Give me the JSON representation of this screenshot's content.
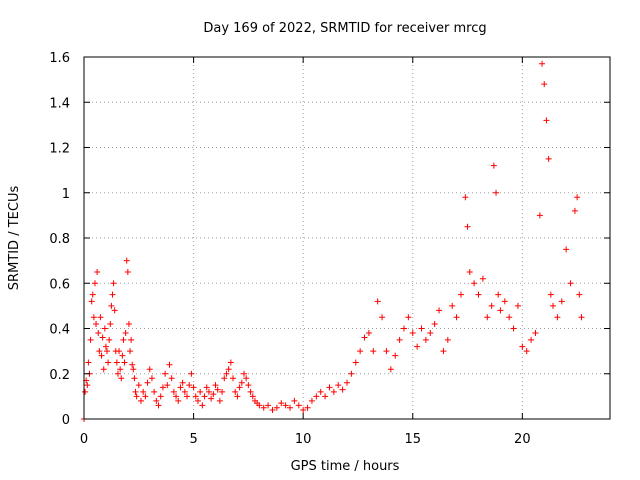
{
  "chart_data": {
    "type": "scatter",
    "title": "Day 169 of 2022, SRMTID for receiver mrcg",
    "xlabel": "GPS time / hours",
    "ylabel": "SRMTID / TECUs",
    "xlim": [
      0,
      24
    ],
    "ylim": [
      0,
      1.6
    ],
    "x_ticks": [
      0,
      5,
      10,
      15,
      20
    ],
    "x_tick_labels": [
      "0",
      "5",
      "10",
      "15",
      "20"
    ],
    "y_ticks": [
      0,
      0.2,
      0.4,
      0.6,
      0.8,
      1.0,
      1.2,
      1.4,
      1.6
    ],
    "y_tick_labels": [
      "0",
      "0.2",
      "0.4",
      "0.6",
      "0.8",
      "1",
      "1.2",
      "1.4",
      "1.6"
    ],
    "grid": true,
    "marker": "plus",
    "color": "#ff0000",
    "series": [
      {
        "name": "SRMTID",
        "points": [
          [
            0.0,
            0.0
          ],
          [
            0.05,
            0.12
          ],
          [
            0.1,
            0.17
          ],
          [
            0.15,
            0.15
          ],
          [
            0.2,
            0.25
          ],
          [
            0.25,
            0.2
          ],
          [
            0.3,
            0.35
          ],
          [
            0.35,
            0.52
          ],
          [
            0.4,
            0.55
          ],
          [
            0.45,
            0.45
          ],
          [
            0.5,
            0.6
          ],
          [
            0.55,
            0.42
          ],
          [
            0.6,
            0.65
          ],
          [
            0.65,
            0.38
          ],
          [
            0.7,
            0.3
          ],
          [
            0.75,
            0.45
          ],
          [
            0.8,
            0.28
          ],
          [
            0.85,
            0.36
          ],
          [
            0.9,
            0.22
          ],
          [
            0.95,
            0.4
          ],
          [
            1.0,
            0.32
          ],
          [
            1.05,
            0.3
          ],
          [
            1.1,
            0.25
          ],
          [
            1.15,
            0.35
          ],
          [
            1.2,
            0.42
          ],
          [
            1.25,
            0.5
          ],
          [
            1.3,
            0.55
          ],
          [
            1.35,
            0.6
          ],
          [
            1.4,
            0.48
          ],
          [
            1.45,
            0.3
          ],
          [
            1.5,
            0.25
          ],
          [
            1.55,
            0.2
          ],
          [
            1.6,
            0.3
          ],
          [
            1.65,
            0.22
          ],
          [
            1.7,
            0.18
          ],
          [
            1.75,
            0.28
          ],
          [
            1.8,
            0.35
          ],
          [
            1.85,
            0.25
          ],
          [
            1.9,
            0.38
          ],
          [
            1.95,
            0.7
          ],
          [
            2.0,
            0.65
          ],
          [
            2.05,
            0.42
          ],
          [
            2.1,
            0.3
          ],
          [
            2.15,
            0.35
          ],
          [
            2.2,
            0.24
          ],
          [
            2.25,
            0.22
          ],
          [
            2.3,
            0.18
          ],
          [
            2.35,
            0.12
          ],
          [
            2.4,
            0.1
          ],
          [
            2.5,
            0.15
          ],
          [
            2.6,
            0.08
          ],
          [
            2.7,
            0.12
          ],
          [
            2.8,
            0.1
          ],
          [
            2.9,
            0.16
          ],
          [
            3.0,
            0.22
          ],
          [
            3.1,
            0.18
          ],
          [
            3.2,
            0.12
          ],
          [
            3.3,
            0.08
          ],
          [
            3.4,
            0.06
          ],
          [
            3.5,
            0.1
          ],
          [
            3.6,
            0.14
          ],
          [
            3.7,
            0.2
          ],
          [
            3.8,
            0.15
          ],
          [
            3.9,
            0.24
          ],
          [
            4.0,
            0.18
          ],
          [
            4.1,
            0.12
          ],
          [
            4.2,
            0.1
          ],
          [
            4.3,
            0.08
          ],
          [
            4.4,
            0.14
          ],
          [
            4.5,
            0.16
          ],
          [
            4.6,
            0.12
          ],
          [
            4.7,
            0.1
          ],
          [
            4.8,
            0.15
          ],
          [
            4.9,
            0.2
          ],
          [
            5.0,
            0.14
          ],
          [
            5.1,
            0.1
          ],
          [
            5.2,
            0.08
          ],
          [
            5.3,
            0.12
          ],
          [
            5.4,
            0.06
          ],
          [
            5.5,
            0.1
          ],
          [
            5.6,
            0.14
          ],
          [
            5.7,
            0.12
          ],
          [
            5.8,
            0.09
          ],
          [
            5.9,
            0.11
          ],
          [
            6.0,
            0.15
          ],
          [
            6.1,
            0.13
          ],
          [
            6.2,
            0.08
          ],
          [
            6.3,
            0.12
          ],
          [
            6.4,
            0.18
          ],
          [
            6.5,
            0.2
          ],
          [
            6.6,
            0.22
          ],
          [
            6.7,
            0.25
          ],
          [
            6.8,
            0.18
          ],
          [
            6.9,
            0.12
          ],
          [
            7.0,
            0.1
          ],
          [
            7.1,
            0.14
          ],
          [
            7.2,
            0.16
          ],
          [
            7.3,
            0.2
          ],
          [
            7.4,
            0.18
          ],
          [
            7.5,
            0.15
          ],
          [
            7.6,
            0.12
          ],
          [
            7.7,
            0.1
          ],
          [
            7.8,
            0.08
          ],
          [
            7.9,
            0.07
          ],
          [
            8.0,
            0.06
          ],
          [
            8.2,
            0.05
          ],
          [
            8.4,
            0.06
          ],
          [
            8.6,
            0.04
          ],
          [
            8.8,
            0.05
          ],
          [
            9.0,
            0.07
          ],
          [
            9.2,
            0.06
          ],
          [
            9.4,
            0.05
          ],
          [
            9.6,
            0.08
          ],
          [
            9.8,
            0.06
          ],
          [
            10.0,
            0.04
          ],
          [
            10.2,
            0.05
          ],
          [
            10.4,
            0.08
          ],
          [
            10.6,
            0.1
          ],
          [
            10.8,
            0.12
          ],
          [
            11.0,
            0.1
          ],
          [
            11.2,
            0.14
          ],
          [
            11.4,
            0.12
          ],
          [
            11.6,
            0.15
          ],
          [
            11.8,
            0.13
          ],
          [
            12.0,
            0.16
          ],
          [
            12.2,
            0.2
          ],
          [
            12.4,
            0.25
          ],
          [
            12.6,
            0.3
          ],
          [
            12.8,
            0.36
          ],
          [
            13.0,
            0.38
          ],
          [
            13.2,
            0.3
          ],
          [
            13.4,
            0.52
          ],
          [
            13.6,
            0.45
          ],
          [
            13.8,
            0.3
          ],
          [
            14.0,
            0.22
          ],
          [
            14.2,
            0.28
          ],
          [
            14.4,
            0.35
          ],
          [
            14.6,
            0.4
          ],
          [
            14.8,
            0.45
          ],
          [
            15.0,
            0.38
          ],
          [
            15.2,
            0.32
          ],
          [
            15.4,
            0.4
          ],
          [
            15.6,
            0.35
          ],
          [
            15.8,
            0.38
          ],
          [
            16.0,
            0.42
          ],
          [
            16.2,
            0.48
          ],
          [
            16.4,
            0.3
          ],
          [
            16.6,
            0.35
          ],
          [
            16.8,
            0.5
          ],
          [
            17.0,
            0.45
          ],
          [
            17.2,
            0.55
          ],
          [
            17.4,
            0.98
          ],
          [
            17.5,
            0.85
          ],
          [
            17.6,
            0.65
          ],
          [
            17.8,
            0.6
          ],
          [
            18.0,
            0.55
          ],
          [
            18.2,
            0.62
          ],
          [
            18.4,
            0.45
          ],
          [
            18.6,
            0.5
          ],
          [
            18.7,
            1.12
          ],
          [
            18.8,
            1.0
          ],
          [
            18.9,
            0.55
          ],
          [
            19.0,
            0.48
          ],
          [
            19.2,
            0.52
          ],
          [
            19.4,
            0.45
          ],
          [
            19.6,
            0.4
          ],
          [
            19.8,
            0.5
          ],
          [
            20.0,
            0.32
          ],
          [
            20.2,
            0.3
          ],
          [
            20.4,
            0.35
          ],
          [
            20.6,
            0.38
          ],
          [
            20.8,
            0.9
          ],
          [
            20.9,
            1.57
          ],
          [
            21.0,
            1.48
          ],
          [
            21.1,
            1.32
          ],
          [
            21.2,
            1.15
          ],
          [
            21.3,
            0.55
          ],
          [
            21.4,
            0.5
          ],
          [
            21.6,
            0.45
          ],
          [
            21.8,
            0.52
          ],
          [
            22.0,
            0.75
          ],
          [
            22.2,
            0.6
          ],
          [
            22.4,
            0.92
          ],
          [
            22.5,
            0.98
          ],
          [
            22.6,
            0.55
          ],
          [
            22.7,
            0.45
          ]
        ]
      }
    ]
  }
}
